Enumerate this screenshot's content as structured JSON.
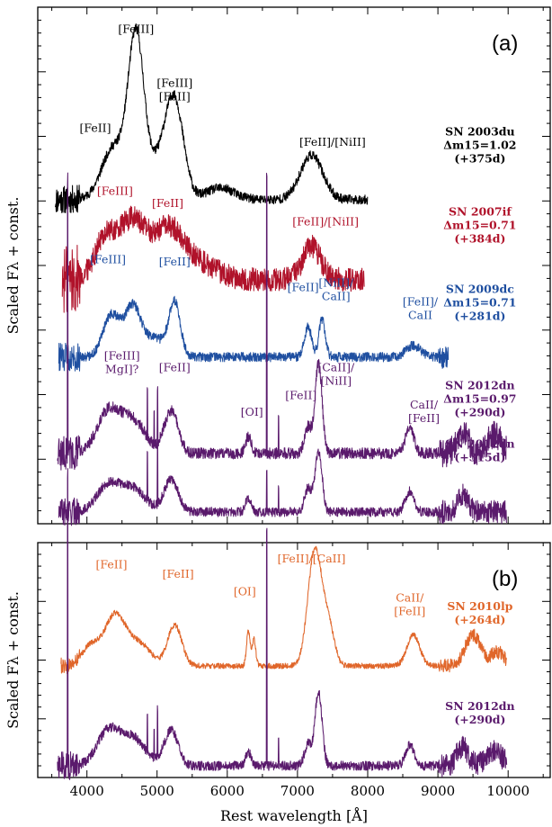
{
  "chart_data": [
    {
      "panel": "(a)",
      "type": "line",
      "xlabel": "Rest wavelength [Å]",
      "ylabel": "Scaled Fλ + const.",
      "xlim": [
        3300,
        10600
      ],
      "x_ticks": [
        4000,
        5000,
        6000,
        7000,
        8000,
        9000,
        10000
      ],
      "series": [
        {
          "name": "SN 2003du",
          "label_lines": [
            "SN 2003du",
            "Δm15=1.02",
            "(+375d)"
          ],
          "color": "#000000",
          "offset": 6.9,
          "x_range": [
            3550,
            8000
          ],
          "noise": 0.1,
          "features": [
            [
              4350,
              0.7,
              150
            ],
            [
              4700,
              3.0,
              110
            ],
            [
              4580,
              0.6,
              260
            ],
            [
              5250,
              1.9,
              130
            ],
            [
              5050,
              0.6,
              170
            ],
            [
              5900,
              0.25,
              200
            ],
            [
              7200,
              0.95,
              160
            ]
          ],
          "annotations": [
            {
              "lines": [
                "[FeII]"
              ],
              "x": 4120,
              "y": 8.35
            },
            {
              "lines": [
                "[FeIII]"
              ],
              "x": 4700,
              "y": 10.45
            },
            {
              "lines": [
                "[FeIII]",
                "[FeII]"
              ],
              "x": 5250,
              "y": 9.3
            },
            {
              "lines": [
                "[FeII]/[NiII]"
              ],
              "x": 7500,
              "y": 8.05
            }
          ]
        },
        {
          "name": "SN 2007if",
          "label_lines": [
            "SN 2007if",
            "Δm15=0.71",
            "(+384d)"
          ],
          "color": "#b0122a",
          "offset": 5.2,
          "x_range": [
            3650,
            7950
          ],
          "noise": 0.25,
          "features": [
            [
              4250,
              0.8,
              150
            ],
            [
              4650,
              1.25,
              200
            ],
            [
              5150,
              0.9,
              200
            ],
            [
              5500,
              0.4,
              300
            ],
            [
              7200,
              0.7,
              130
            ]
          ],
          "annotations": [
            {
              "lines": [
                "[FeIII]"
              ],
              "x": 4400,
              "y": 7.0
            },
            {
              "lines": [
                "[FeII]"
              ],
              "x": 5150,
              "y": 6.75
            },
            {
              "lines": [
                "[FeII]/[NiII]"
              ],
              "x": 7400,
              "y": 6.35
            }
          ]
        },
        {
          "name": "SN 2009dc",
          "label_lines": [
            "SN 2009dc",
            "Δm15=0.71",
            "(+281d)"
          ],
          "color": "#1f4fa0",
          "offset": 3.55,
          "x_range": [
            3600,
            9150
          ],
          "noise": 0.1,
          "features": [
            [
              4350,
              0.9,
              120
            ],
            [
              4650,
              1.0,
              110
            ],
            [
              5250,
              1.1,
              80
            ],
            [
              4950,
              0.4,
              180
            ],
            [
              7150,
              0.65,
              50
            ],
            [
              7350,
              0.8,
              45
            ],
            [
              8650,
              0.25,
              100
            ]
          ],
          "annotations": [
            {
              "lines": [
                "[FeIII]"
              ],
              "x": 4300,
              "y": 5.55
            },
            {
              "lines": [
                "[FeII]"
              ],
              "x": 5250,
              "y": 5.5
            },
            {
              "lines": [
                "[FeII]"
              ],
              "x": 7080,
              "y": 4.95
            },
            {
              "lines": [
                "[NiII]/",
                "CaII]"
              ],
              "x": 7550,
              "y": 5.05
            },
            {
              "lines": [
                "[FeII]/",
                "CaII"
              ],
              "x": 8750,
              "y": 4.65
            }
          ]
        },
        {
          "name": "SN 2012dn",
          "label_lines": [
            "SN 2012dn",
            "Δm15=0.97",
            "(+290d)"
          ],
          "color": "#5a1a6c",
          "offset": 1.5,
          "x_range": [
            3580,
            9980
          ],
          "noise": 0.12,
          "features": [
            [
              4300,
              0.85,
              160
            ],
            [
              4650,
              0.7,
              180
            ],
            [
              5200,
              0.9,
              100
            ],
            [
              6300,
              0.35,
              40
            ],
            [
              7150,
              0.55,
              50
            ],
            [
              7300,
              1.9,
              50
            ],
            [
              8600,
              0.55,
              60
            ],
            [
              9350,
              0.5,
              80
            ],
            [
              9800,
              0.4,
              100
            ]
          ],
          "lines": [
            [
              3727,
              6.0
            ],
            [
              6563,
              6.0
            ],
            [
              4861,
              1.0
            ],
            [
              5007,
              1.2
            ],
            [
              4959,
              0.7
            ],
            [
              6730,
              0.7
            ]
          ],
          "annotations": [
            {
              "lines": [
                "[FeIII]",
                "MgI]?"
              ],
              "x": 4500,
              "y": 3.5
            },
            {
              "lines": [
                "[FeII]"
              ],
              "x": 5250,
              "y": 3.25
            },
            {
              "lines": [
                "[OI]"
              ],
              "x": 6350,
              "y": 2.3
            },
            {
              "lines": [
                "[FeII]"
              ],
              "x": 7050,
              "y": 2.65
            },
            {
              "lines": [
                "[CaII]/",
                "[NiII]"
              ],
              "x": 7550,
              "y": 3.25
            },
            {
              "lines": [
                "CaII/",
                "[FeII]"
              ],
              "x": 8800,
              "y": 2.45
            }
          ]
        },
        {
          "name": "SN 2012dn",
          "label_lines": [
            "SN 2012dn",
            "(+315d)"
          ],
          "color": "#5a1a6c",
          "offset": 0.25,
          "x_range": [
            3600,
            9980
          ],
          "noise": 0.1,
          "features": [
            [
              4300,
              0.55,
              160
            ],
            [
              4650,
              0.5,
              180
            ],
            [
              5200,
              0.7,
              100
            ],
            [
              6300,
              0.3,
              40
            ],
            [
              7150,
              0.5,
              50
            ],
            [
              7300,
              1.3,
              50
            ],
            [
              8600,
              0.45,
              60
            ],
            [
              9350,
              0.35,
              80
            ]
          ],
          "lines": [
            [
              4861,
              1.0
            ],
            [
              5007,
              1.4
            ],
            [
              6563,
              0.9
            ],
            [
              6730,
              0.5
            ]
          ],
          "annotations": []
        }
      ]
    },
    {
      "panel": "(b)",
      "type": "line",
      "xlabel": "Rest wavelength [Å]",
      "ylabel": "Scaled Fλ + const.",
      "xlim": [
        3300,
        10600
      ],
      "x_ticks": [
        4000,
        5000,
        6000,
        7000,
        8000,
        9000,
        10000
      ],
      "series": [
        {
          "name": "SN 2010lp",
          "label_lines": [
            "SN 2010lp",
            "(+264d)"
          ],
          "color": "#e0662a",
          "offset": 2.85,
          "x_range": [
            3630,
            9980
          ],
          "noise": 0.07,
          "features": [
            [
              4400,
              1.3,
              150
            ],
            [
              4050,
              0.5,
              120
            ],
            [
              4750,
              0.55,
              160
            ],
            [
              5250,
              1.05,
              100
            ],
            [
              6300,
              0.9,
              25
            ],
            [
              6380,
              0.7,
              25
            ],
            [
              7250,
              3.0,
              100
            ],
            [
              7450,
              0.9,
              80
            ],
            [
              8650,
              0.8,
              90
            ],
            [
              9500,
              0.8,
              110
            ],
            [
              9850,
              0.35,
              100
            ]
          ],
          "annotations": [
            {
              "lines": [
                "[FeII]"
              ],
              "x": 4350,
              "y": 5.35
            },
            {
              "lines": [
                "[FeII]"
              ],
              "x": 5300,
              "y": 5.1
            },
            {
              "lines": [
                "[OI]"
              ],
              "x": 6250,
              "y": 4.65
            },
            {
              "lines": [
                "[FeII]/[CaII]"
              ],
              "x": 7200,
              "y": 5.5
            },
            {
              "lines": [
                "CaII/",
                "[FeII]"
              ],
              "x": 8600,
              "y": 4.5
            }
          ]
        },
        {
          "name": "SN 2012dn",
          "label_lines": [
            "SN 2012dn",
            "(+290d)"
          ],
          "color": "#5a1a6c",
          "offset": 0.3,
          "x_range": [
            3580,
            9980
          ],
          "noise": 0.12,
          "features": [
            [
              4300,
              0.85,
              160
            ],
            [
              4650,
              0.7,
              180
            ],
            [
              5200,
              0.9,
              100
            ],
            [
              6300,
              0.35,
              40
            ],
            [
              7150,
              0.55,
              50
            ],
            [
              7300,
              1.9,
              50
            ],
            [
              8600,
              0.55,
              60
            ],
            [
              9350,
              0.5,
              80
            ],
            [
              9800,
              0.4,
              100
            ]
          ],
          "lines": [
            [
              3727,
              7.5
            ],
            [
              6563,
              6.0
            ],
            [
              4861,
              1.0
            ],
            [
              5007,
              1.2
            ],
            [
              4959,
              0.7
            ],
            [
              6730,
              0.7
            ]
          ],
          "annotations": []
        }
      ]
    }
  ]
}
